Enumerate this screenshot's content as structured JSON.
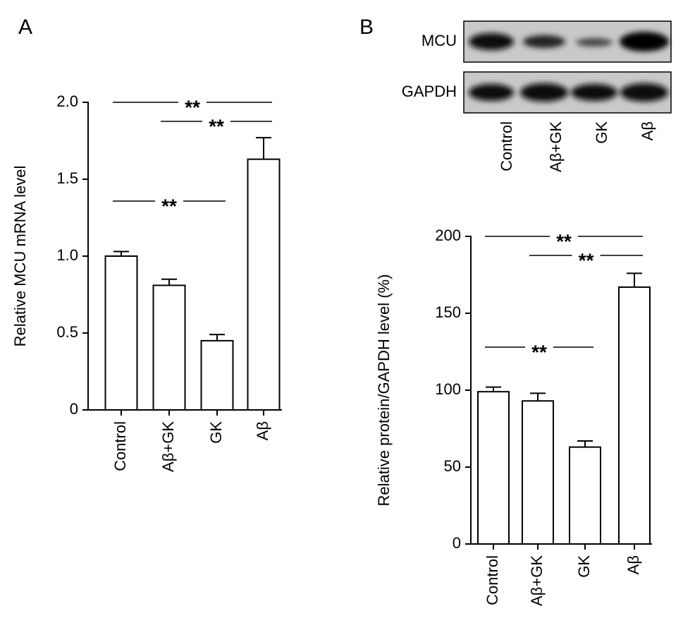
{
  "chart_data": [
    {
      "type": "bar",
      "panel": "A",
      "ylabel": "Relative MCU mRNA level",
      "categories": [
        "Control",
        "Aβ+GK",
        "GK",
        "Aβ"
      ],
      "values": [
        1.0,
        0.81,
        0.45,
        1.63
      ],
      "errors": [
        0.03,
        0.04,
        0.04,
        0.14
      ],
      "color": "#ffffff",
      "ylim": [
        0,
        2.0
      ],
      "yticks": [
        0,
        {
          "value": 0.5,
          "label": "0.5"
        },
        {
          "value": 1.0,
          "label": "1.0"
        },
        {
          "value": 1.5,
          "label": "1.5"
        },
        {
          "value": 2.0,
          "label": "2.0"
        }
      ],
      "annotations": [
        {
          "text": "**",
          "between": [
            "Control",
            "Aβ"
          ]
        },
        {
          "text": "**",
          "between": [
            "Aβ+GK",
            "Aβ"
          ]
        },
        {
          "text": "**",
          "between": [
            "Control",
            "GK"
          ]
        }
      ]
    },
    {
      "type": "bar",
      "panel": "B",
      "ylabel": "Relative protein/GAPDH level (%)",
      "categories": [
        "Control",
        "Aβ+GK",
        "GK",
        "Aβ"
      ],
      "values": [
        99,
        93,
        63,
        167
      ],
      "errors": [
        3,
        5,
        4,
        9
      ],
      "color": "#ffffff",
      "ylim": [
        0,
        200
      ],
      "yticks": [
        0,
        50,
        100,
        150,
        200
      ],
      "annotations": [
        {
          "text": "**",
          "between": [
            "Control",
            "Aβ"
          ]
        },
        {
          "text": "**",
          "between": [
            "Aβ+GK",
            "Aβ"
          ]
        },
        {
          "text": "**",
          "between": [
            "Control",
            "GK"
          ]
        }
      ]
    }
  ],
  "blot": {
    "rows": [
      "MCU",
      "GAPDH"
    ],
    "lanes": [
      "Control",
      "Aβ+GK",
      "GK",
      "Aβ"
    ]
  }
}
